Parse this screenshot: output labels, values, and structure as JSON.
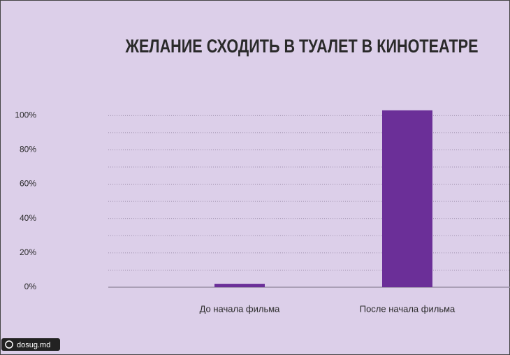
{
  "chart_data": {
    "type": "bar",
    "title": "ЖЕЛАНИЕ СХОДИТЬ В ТУАЛЕТ В КИНОТЕАТРЕ",
    "categories": [
      "До начала фильма",
      "После начала фильма"
    ],
    "values": [
      2,
      103
    ],
    "color": "#6b2f98",
    "ylim": [
      0,
      105
    ],
    "yticks": [
      {
        "value": 0,
        "label": "0%"
      },
      {
        "value": 20,
        "label": "20%"
      },
      {
        "value": 40,
        "label": "40%"
      },
      {
        "value": 60,
        "label": "60%"
      },
      {
        "value": 80,
        "label": "80%"
      },
      {
        "value": 100,
        "label": "100%"
      }
    ],
    "grid_lines": [
      10,
      20,
      30,
      40,
      50,
      60,
      70,
      80,
      90,
      100
    ],
    "grid": true,
    "watermark": "dosug.md"
  }
}
